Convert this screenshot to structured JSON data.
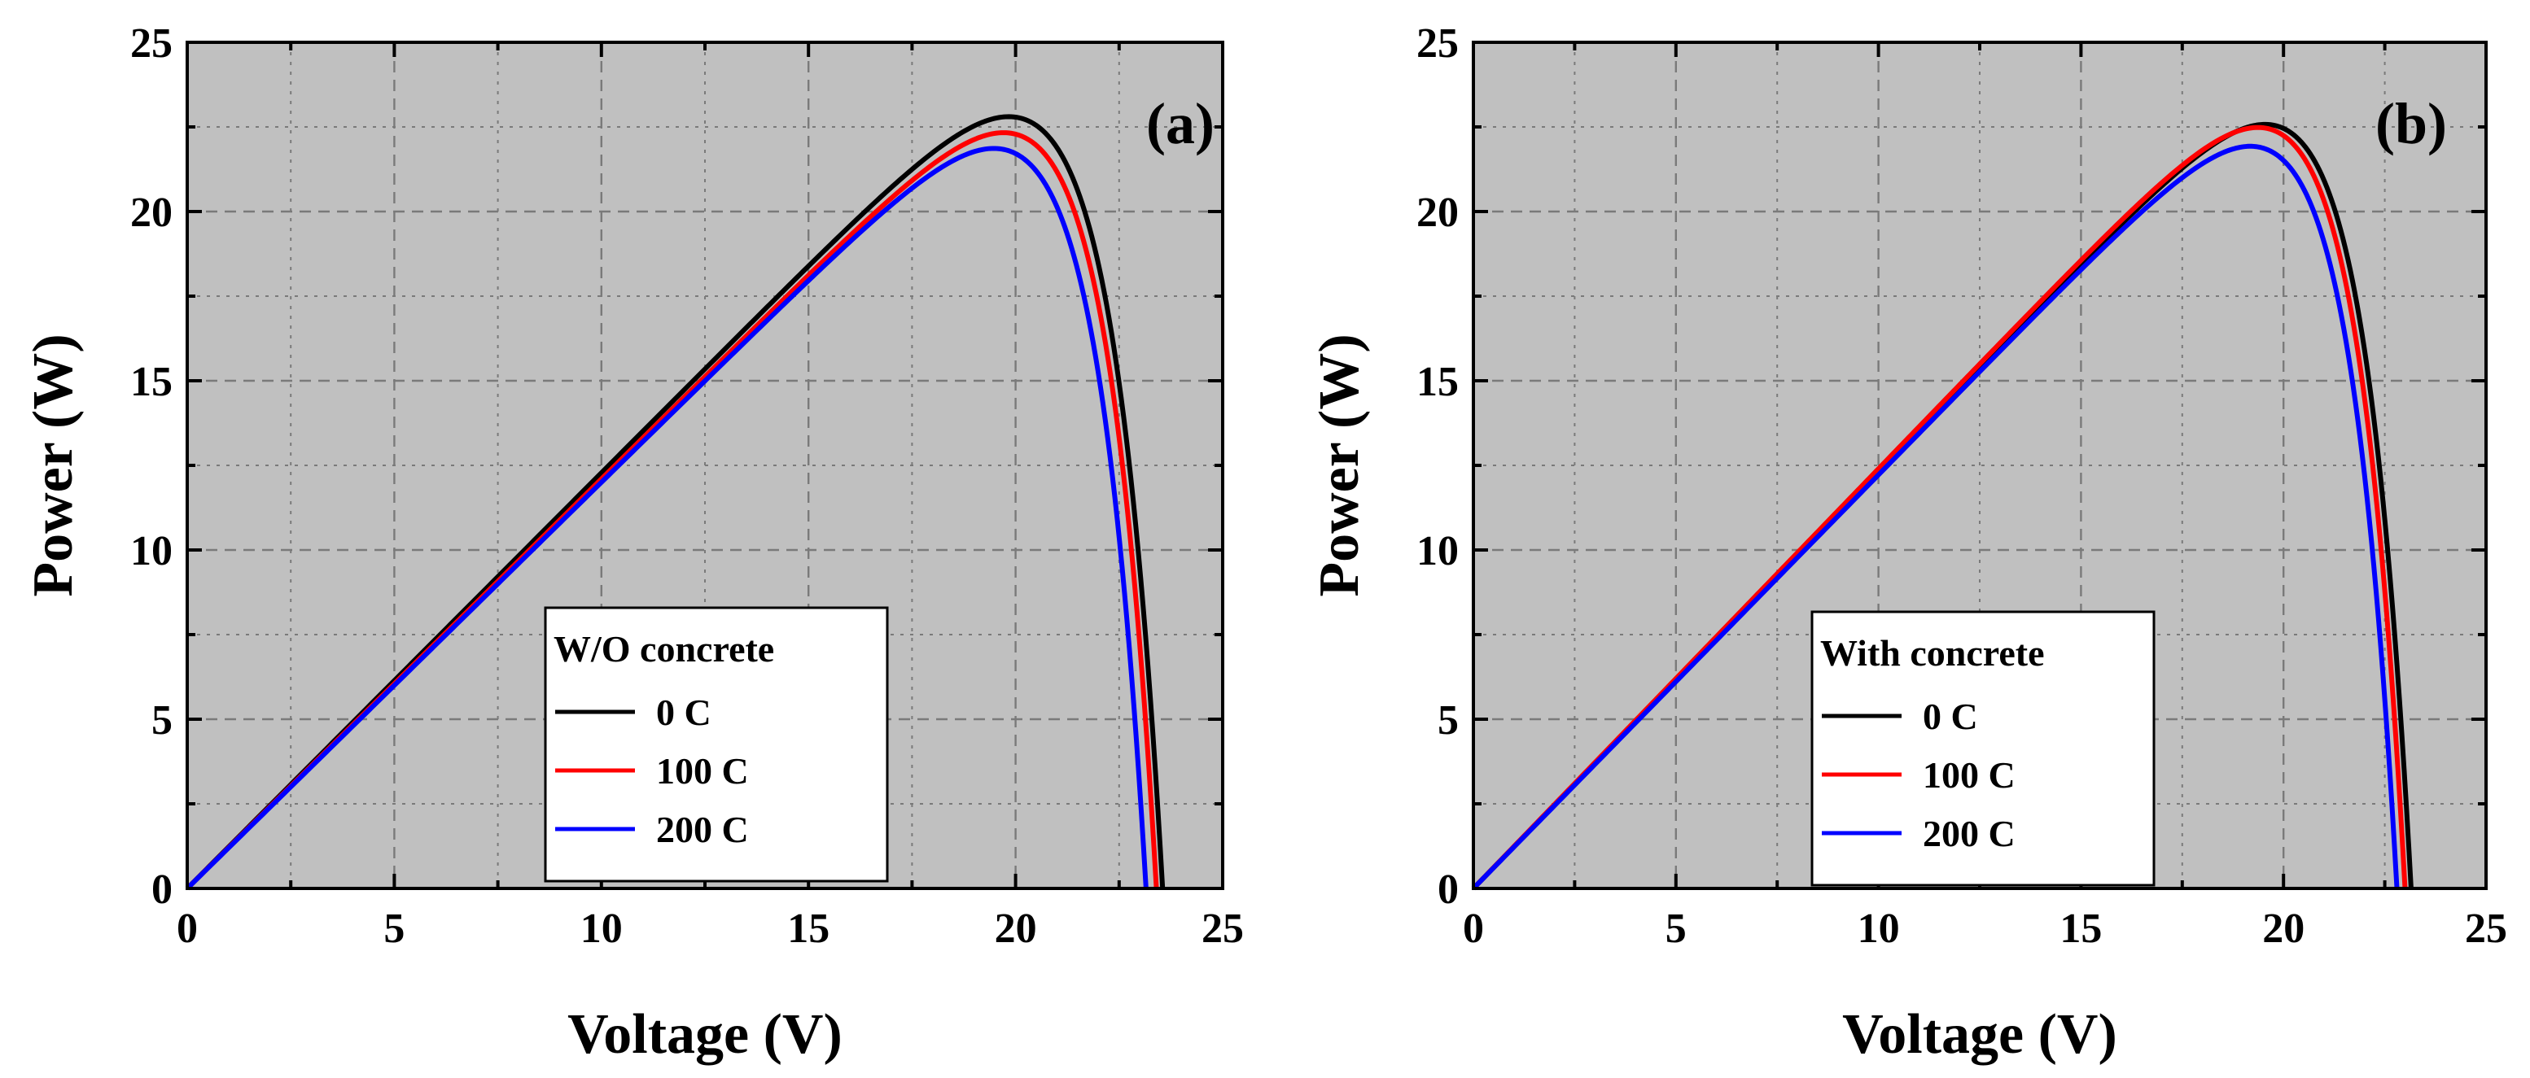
{
  "chart_data": [
    {
      "type": "line",
      "panel_label": "(a)",
      "xlabel": "Voltage (V)",
      "ylabel": "Power (W)",
      "xlim": [
        0,
        25
      ],
      "ylim": [
        0,
        25
      ],
      "xticks": [
        "0",
        "5",
        "10",
        "15",
        "20",
        "25"
      ],
      "yticks": [
        "0",
        "5",
        "10",
        "15",
        "20",
        "25"
      ],
      "grid": true,
      "legend_title": "W/O concrete",
      "legend_position": "bottom-center",
      "series": [
        {
          "name": "0 C",
          "color": "#000000",
          "isc": 1.228,
          "voc": 23.55,
          "vk": 1.35
        },
        {
          "name": "100 C",
          "color": "#ff0000",
          "isc": 1.21,
          "voc": 23.4,
          "vk": 1.34
        },
        {
          "name": "200 C",
          "color": "#0000ff",
          "isc": 1.2,
          "voc": 23.15,
          "vk": 1.34
        }
      ]
    },
    {
      "type": "line",
      "panel_label": "(b)",
      "xlabel": "Voltage (V)",
      "ylabel": "Power (W)",
      "xlim": [
        0,
        25
      ],
      "ylim": [
        0,
        25
      ],
      "xticks": [
        "0",
        "5",
        "10",
        "15",
        "20",
        "25"
      ],
      "yticks": [
        "0",
        "5",
        "10",
        "15",
        "20",
        "25"
      ],
      "grid": true,
      "legend_title": "With concrete",
      "legend_position": "bottom-center",
      "series": [
        {
          "name": "0 C",
          "color": "#000000",
          "isc": 1.232,
          "voc": 23.15,
          "vk": 1.3
        },
        {
          "name": "100 C",
          "color": "#ff0000",
          "isc": 1.24,
          "voc": 23.0,
          "vk": 1.32
        },
        {
          "name": "200 C",
          "color": "#0000ff",
          "isc": 1.222,
          "voc": 22.8,
          "vk": 1.32
        }
      ]
    }
  ]
}
